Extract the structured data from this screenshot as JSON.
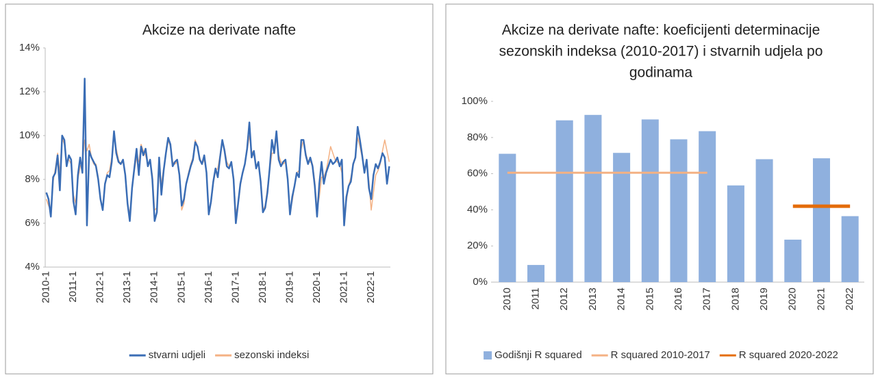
{
  "chart_data": [
    {
      "type": "line",
      "title": "Akcize na derivate nafte",
      "categories": [
        "2010-1",
        null,
        null,
        null,
        null,
        null,
        null,
        null,
        null,
        null,
        null,
        null,
        "2011-1",
        null,
        null,
        null,
        null,
        null,
        null,
        null,
        null,
        null,
        null,
        null,
        "2012-1",
        null,
        null,
        null,
        null,
        null,
        null,
        null,
        null,
        null,
        null,
        null,
        "2013-1",
        null,
        null,
        null,
        null,
        null,
        null,
        null,
        null,
        null,
        null,
        null,
        "2014-1",
        null,
        null,
        null,
        null,
        null,
        null,
        null,
        null,
        null,
        null,
        null,
        "2015-1",
        null,
        null,
        null,
        null,
        null,
        null,
        null,
        null,
        null,
        null,
        null,
        "2016-1",
        null,
        null,
        null,
        null,
        null,
        null,
        null,
        null,
        null,
        null,
        null,
        "2017-1",
        null,
        null,
        null,
        null,
        null,
        null,
        null,
        null,
        null,
        null,
        null,
        "2018-1",
        null,
        null,
        null,
        null,
        null,
        null,
        null,
        null,
        null,
        null,
        null,
        "2019-1",
        null,
        null,
        null,
        null,
        null,
        null,
        null,
        null,
        null,
        null,
        null,
        "2020-1",
        null,
        null,
        null,
        null,
        null,
        null,
        null,
        null,
        null,
        null,
        null,
        "2021-1",
        null,
        null,
        null,
        null,
        null,
        null,
        null,
        null,
        null,
        null,
        null,
        "2022-1",
        null,
        null,
        null,
        null,
        null,
        null,
        null,
        null
      ],
      "series": [
        {
          "name": "stvarni udjeli",
          "color": "#3a6db5",
          "values": [
            7.4,
            7.1,
            6.3,
            8.1,
            8.3,
            9.1,
            7.5,
            10.0,
            9.8,
            8.6,
            9.1,
            8.9,
            7.0,
            6.4,
            8.2,
            9.0,
            8.3,
            12.6,
            5.9,
            9.3,
            9.0,
            8.8,
            8.6,
            8.0,
            7.1,
            6.6,
            7.8,
            8.2,
            8.1,
            8.8,
            10.2,
            9.2,
            8.8,
            8.7,
            8.9,
            8.2,
            6.9,
            6.1,
            7.6,
            8.5,
            9.4,
            8.2,
            9.5,
            9.1,
            9.4,
            8.6,
            8.9,
            8.0,
            6.1,
            6.5,
            9.0,
            7.3,
            8.4,
            9.2,
            9.9,
            9.6,
            8.6,
            8.8,
            8.9,
            8.2,
            6.8,
            7.1,
            7.8,
            8.2,
            8.6,
            8.9,
            9.7,
            9.5,
            8.9,
            8.7,
            9.1,
            8.3,
            6.4,
            7.0,
            7.9,
            8.5,
            8.1,
            9.0,
            9.8,
            9.3,
            8.6,
            8.5,
            8.8,
            8.0,
            6.0,
            6.9,
            7.8,
            8.3,
            8.7,
            9.4,
            10.6,
            9.0,
            9.3,
            8.5,
            8.8,
            7.9,
            6.5,
            6.7,
            7.4,
            8.5,
            9.8,
            9.2,
            10.2,
            8.9,
            8.6,
            8.8,
            8.9,
            8.0,
            6.4,
            7.2,
            7.7,
            8.3,
            8.1,
            9.8,
            9.8,
            9.1,
            8.7,
            9.0,
            8.6,
            7.7,
            6.3,
            7.8,
            8.8,
            7.8,
            8.3,
            8.6,
            8.9,
            8.7,
            8.8,
            9.0,
            8.6,
            8.9,
            5.9,
            7.2,
            7.7,
            7.9,
            8.7,
            9.0,
            10.4,
            9.8,
            9.1,
            8.3,
            8.9,
            7.6,
            7.1,
            8.2,
            8.7,
            8.5,
            8.8,
            9.2,
            9.0,
            7.8,
            8.6
          ]
        },
        {
          "name": "sezonski indeksi",
          "color": "#f4b183",
          "values": [
            7.1,
            6.8,
            6.6,
            7.9,
            8.5,
            9.2,
            8.3,
            9.9,
            9.6,
            8.8,
            8.9,
            8.7,
            7.3,
            6.9,
            8.0,
            8.6,
            8.8,
            9.8,
            9.3,
            9.6,
            9.0,
            8.7,
            8.7,
            8.1,
            7.1,
            6.6,
            7.7,
            8.3,
            8.4,
            9.0,
            10.0,
            9.4,
            8.9,
            8.7,
            8.8,
            8.3,
            6.9,
            6.4,
            7.7,
            8.4,
            9.0,
            8.8,
            9.6,
            9.3,
            9.1,
            8.7,
            8.8,
            8.2,
            6.6,
            6.7,
            8.3,
            7.8,
            8.5,
            9.1,
            9.8,
            9.5,
            8.8,
            8.7,
            8.8,
            8.3,
            6.6,
            6.9,
            7.8,
            8.3,
            8.7,
            9.0,
            9.8,
            9.5,
            9.0,
            8.7,
            8.9,
            8.3,
            6.6,
            6.9,
            7.8,
            8.4,
            8.5,
            9.1,
            9.8,
            9.4,
            8.8,
            8.6,
            8.8,
            8.1,
            6.5,
            6.8,
            7.7,
            8.3,
            8.7,
            9.3,
            10.0,
            9.3,
            9.1,
            8.6,
            8.8,
            8.0,
            6.6,
            6.8,
            7.6,
            8.4,
            9.2,
            9.2,
            9.9,
            9.1,
            8.8,
            8.7,
            8.8,
            8.0,
            6.6,
            7.0,
            7.7,
            8.3,
            8.4,
            9.4,
            9.8,
            9.2,
            8.8,
            8.8,
            8.7,
            7.9,
            6.6,
            7.2,
            8.1,
            8.1,
            8.4,
            8.9,
            9.5,
            9.2,
            8.9,
            8.8,
            8.7,
            8.3,
            6.5,
            7.0,
            7.7,
            8.1,
            8.6,
            9.1,
            9.9,
            9.5,
            9.0,
            8.5,
            8.8,
            7.9,
            6.6,
            7.4,
            8.2,
            8.4,
            8.7,
            9.3,
            9.8,
            9.3,
            8.8
          ]
        }
      ],
      "ylim": [
        4,
        14
      ],
      "yticks": [
        {
          "value": 4,
          "label": "4%"
        },
        {
          "value": 6,
          "label": "6%"
        },
        {
          "value": 8,
          "label": "8%"
        },
        {
          "value": 10,
          "label": "10%"
        },
        {
          "value": 12,
          "label": "12%"
        },
        {
          "value": 14,
          "label": "14%"
        }
      ],
      "grid": false
    },
    {
      "type": "bar",
      "title": [
        "Akcize na derivate nafte: koeficijenti determinacije",
        "sezonskih indeksa (2010-2017) i stvarnih udjela po",
        "godinama"
      ],
      "categories": [
        "2010",
        "2011",
        "2012",
        "2013",
        "2014",
        "2015",
        "2016",
        "2017",
        "2018",
        "2019",
        "2020",
        "2021",
        "2022"
      ],
      "series": [
        {
          "name": "Godišnji R squared",
          "type": "bar",
          "color": "#8fb0de",
          "values": [
            71,
            9.5,
            89.5,
            92.5,
            71.5,
            90,
            79,
            83.5,
            53.5,
            68,
            23.5,
            68.5,
            36.5
          ]
        },
        {
          "name": "R squared 2010-2017",
          "type": "line",
          "color": "#f4b183",
          "values": [
            60.5,
            60.5,
            60.5,
            60.5,
            60.5,
            60.5,
            60.5,
            60.5,
            null,
            null,
            null,
            null,
            null
          ]
        },
        {
          "name": "R squared 2020-2022",
          "type": "line",
          "color": "#e46c0a",
          "values": [
            null,
            null,
            null,
            null,
            null,
            null,
            null,
            null,
            null,
            null,
            42,
            42,
            42
          ]
        }
      ],
      "ylim": [
        0,
        100
      ],
      "yticks": [
        {
          "value": 0,
          "label": "0%"
        },
        {
          "value": 20,
          "label": "20%"
        },
        {
          "value": 40,
          "label": "40%"
        },
        {
          "value": 60,
          "label": "60%"
        },
        {
          "value": 80,
          "label": "80%"
        },
        {
          "value": 100,
          "label": "100%"
        }
      ],
      "grid": false
    }
  ]
}
